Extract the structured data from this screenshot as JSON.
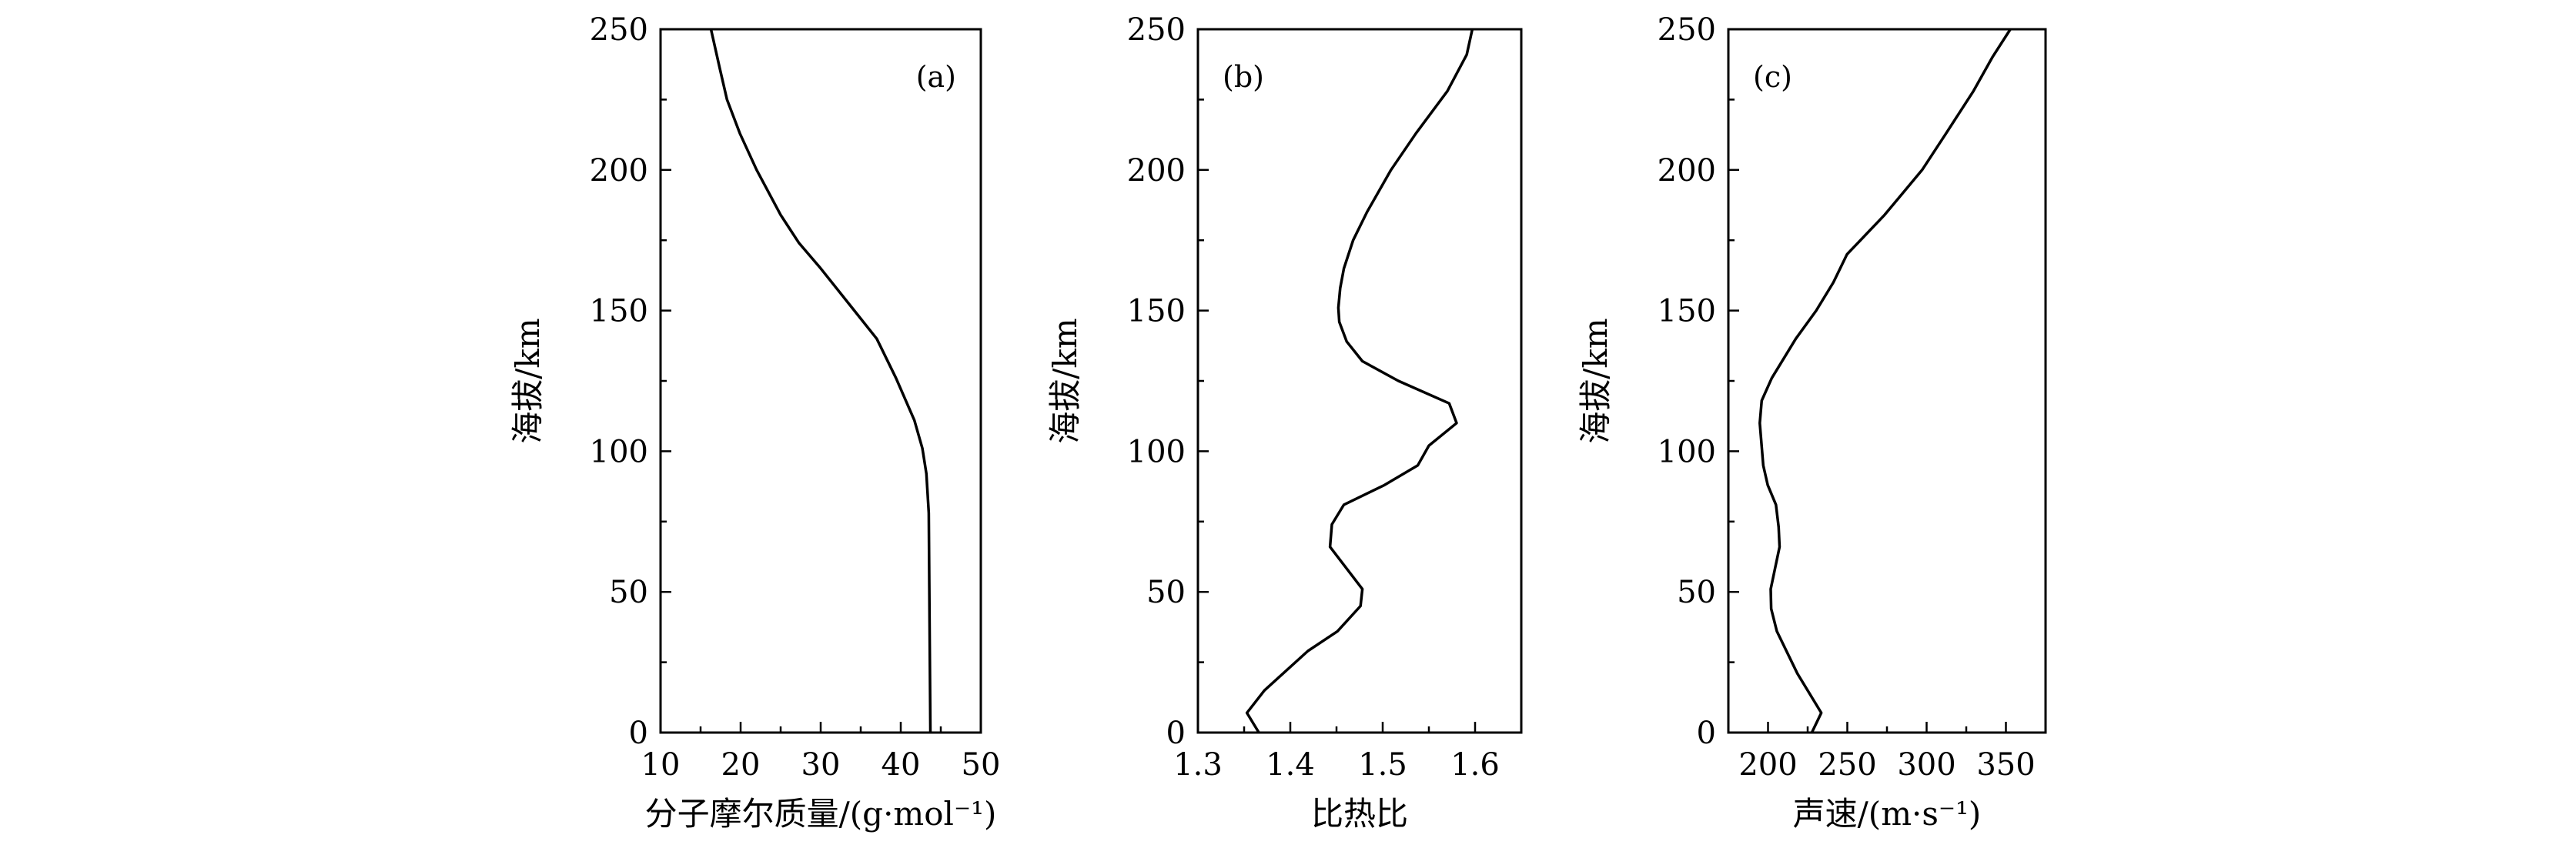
{
  "chart_data": [
    {
      "type": "line",
      "panel_label": "(a)",
      "xlabel": "分子摩尔质量/(g·mol⁻¹)",
      "ylabel": "海拔/km",
      "xlim": [
        10,
        50
      ],
      "ylim": [
        0,
        250
      ],
      "xticks": [
        "10",
        "20",
        "30",
        "40",
        "50"
      ],
      "xtick_values": [
        10,
        20,
        30,
        40,
        50
      ],
      "yticks": [
        "0",
        "50",
        "100",
        "150",
        "200",
        "250"
      ],
      "ytick_values": [
        0,
        50,
        100,
        150,
        200,
        250
      ],
      "x_minor": [
        15,
        25,
        35,
        45
      ],
      "label_position": "top-right",
      "series": [
        {
          "name": "molar mass",
          "x": [
            43.7,
            43.6,
            43.5,
            43.2,
            42.7,
            41.7,
            39.4,
            37.0,
            34.2,
            30.0,
            27.3,
            25.0,
            22.0,
            19.9,
            18.3,
            17.4,
            16.3
          ],
          "y": [
            0,
            40,
            78,
            92,
            101,
            111,
            126,
            140,
            150,
            165,
            174,
            184,
            200,
            213,
            225,
            236,
            250
          ]
        }
      ]
    },
    {
      "type": "line",
      "panel_label": "(b)",
      "xlabel": "比热比",
      "ylabel": "海拔/km",
      "xlim": [
        1.3,
        1.65
      ],
      "ylim": [
        0,
        250
      ],
      "xticks": [
        "1.3",
        "1.4",
        "1.5",
        "1.6"
      ],
      "xtick_values": [
        1.3,
        1.4,
        1.5,
        1.6
      ],
      "yticks": [
        "0",
        "50",
        "100",
        "150",
        "200",
        "250"
      ],
      "ytick_values": [
        0,
        50,
        100,
        150,
        200,
        250
      ],
      "x_minor": [
        1.35,
        1.45,
        1.55
      ],
      "label_position": "top-left",
      "series": [
        {
          "name": "specific heat ratio",
          "x": [
            1.366,
            1.353,
            1.372,
            1.419,
            1.451,
            1.476,
            1.478,
            1.443,
            1.445,
            1.458,
            1.502,
            1.538,
            1.55,
            1.58,
            1.572,
            1.517,
            1.478,
            1.461,
            1.453,
            1.452,
            1.454,
            1.458,
            1.468,
            1.483,
            1.509,
            1.536,
            1.57,
            1.591,
            1.597
          ],
          "y": [
            0,
            7,
            15,
            29,
            36,
            45,
            51,
            66,
            74,
            81,
            88,
            95,
            102,
            110,
            117,
            125,
            132,
            139,
            146,
            151,
            158,
            165,
            175,
            185,
            200,
            213,
            228,
            241,
            250
          ]
        }
      ]
    },
    {
      "type": "line",
      "panel_label": "(c)",
      "xlabel": "声速/(m·s⁻¹)",
      "ylabel": "海拔/km",
      "xlim": [
        175,
        375
      ],
      "ylim": [
        0,
        250
      ],
      "xticks": [
        "200",
        "250",
        "300",
        "350"
      ],
      "xtick_values": [
        200,
        250,
        300,
        350
      ],
      "yticks": [
        "0",
        "50",
        "100",
        "150",
        "200",
        "250"
      ],
      "ytick_values": [
        0,
        50,
        100,
        150,
        200,
        250
      ],
      "x_minor": [
        225,
        275,
        325
      ],
      "label_position": "top-left",
      "series": [
        {
          "name": "sound speed",
          "x": [
            227.6,
            233.6,
            218.5,
            205.6,
            202,
            201.7,
            207.3,
            206.7,
            205,
            199.8,
            197,
            194.8,
            196,
            202.4,
            217.5,
            230.4,
            241.2,
            249.8,
            273.5,
            297.2,
            312.3,
            329.5,
            341.4,
            352.8
          ],
          "y": [
            0,
            7,
            21,
            36,
            44,
            51,
            66,
            73,
            81,
            88,
            95,
            110,
            118,
            126,
            140,
            150,
            160,
            170,
            184,
            200,
            213,
            228,
            240,
            250
          ]
        }
      ]
    }
  ]
}
